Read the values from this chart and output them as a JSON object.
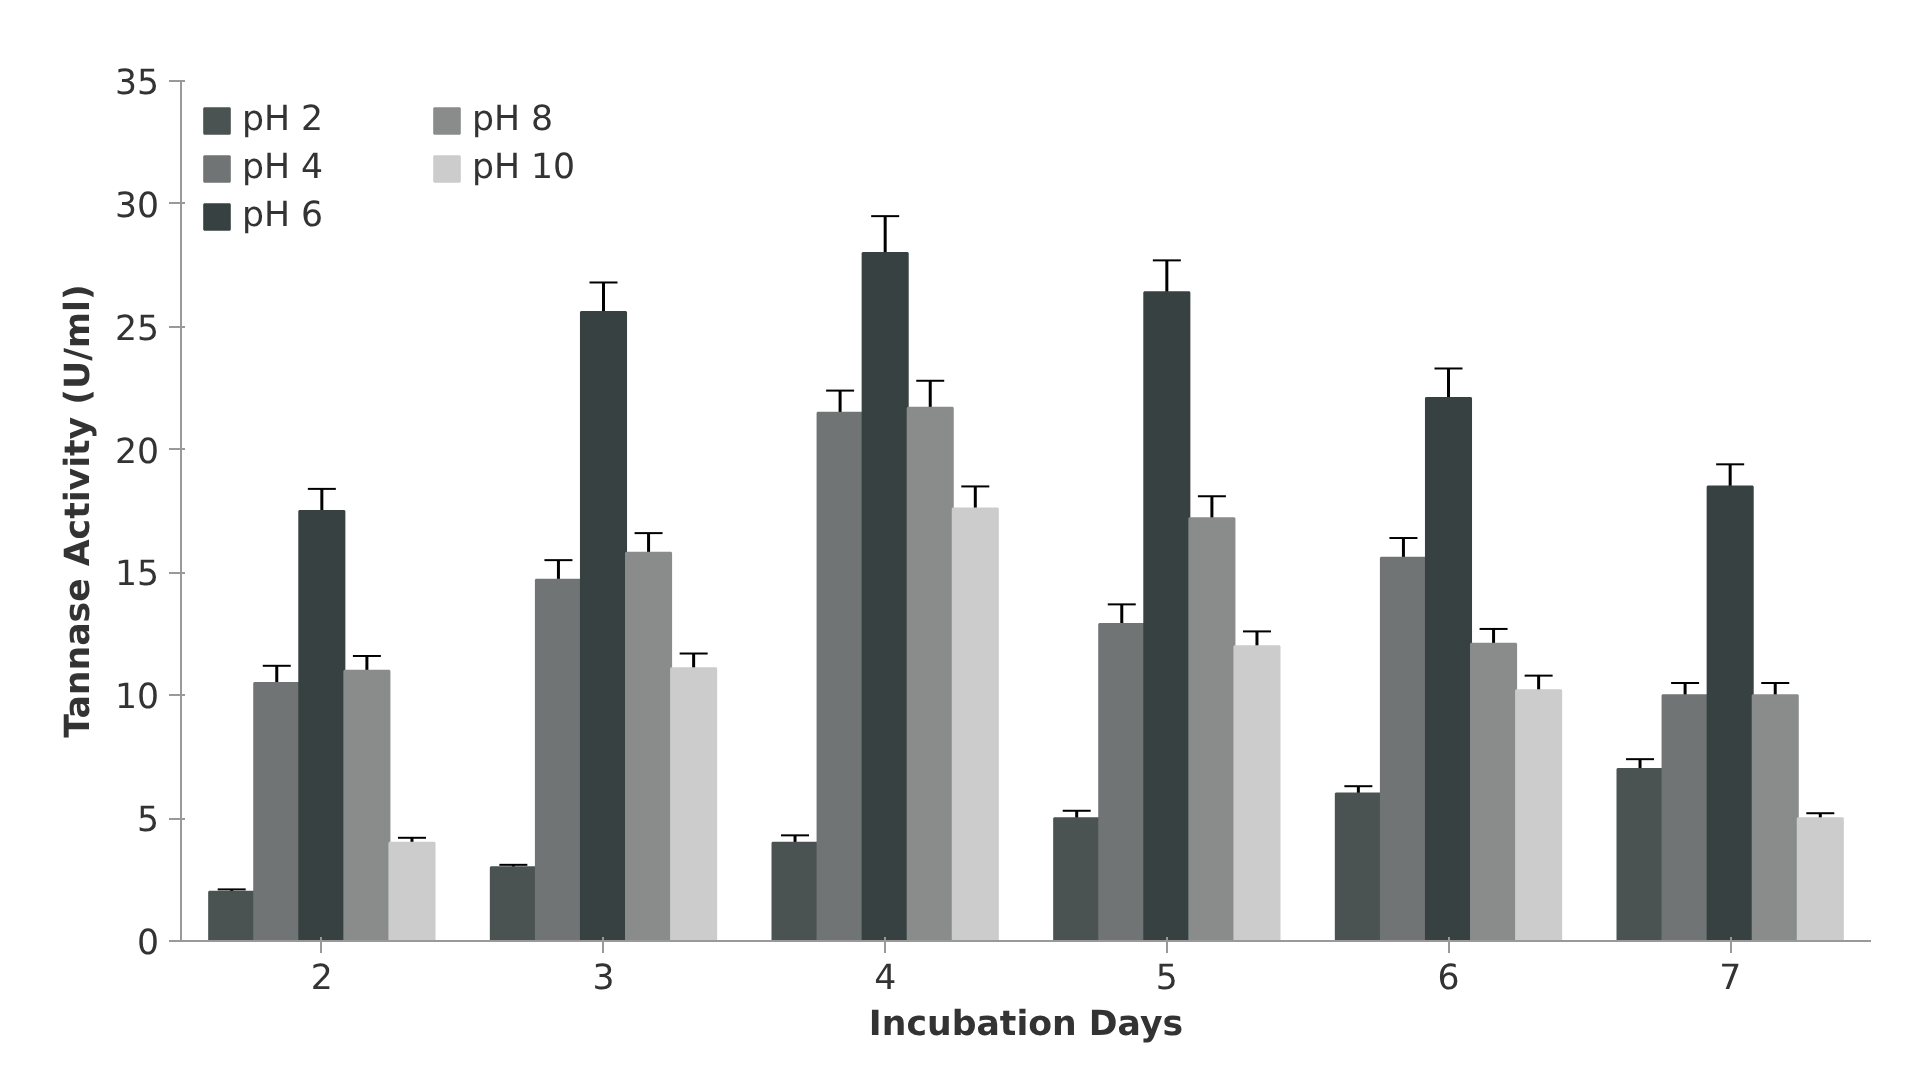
{
  "chart_data": {
    "type": "bar",
    "xlabel": "Incubation Days",
    "ylabel": "Tannase Activity (U/ml)",
    "categories": [
      "2",
      "3",
      "4",
      "5",
      "6",
      "7"
    ],
    "ylim": [
      0,
      35
    ],
    "yticks": [
      0,
      5,
      10,
      15,
      20,
      25,
      30,
      35
    ],
    "grid": false,
    "legend": "top left",
    "series": [
      {
        "name": "pH 2",
        "color": "#4a5352",
        "values": [
          2,
          3,
          4,
          5,
          6,
          7
        ],
        "errors": [
          0.1,
          0.1,
          0.3,
          0.3,
          0.3,
          0.4
        ]
      },
      {
        "name": "pH 4",
        "color": "#707474",
        "values": [
          10.5,
          14.7,
          21.5,
          12.9,
          15.6,
          10
        ],
        "errors": [
          0.7,
          0.8,
          0.9,
          0.8,
          0.8,
          0.5
        ]
      },
      {
        "name": "pH 6",
        "color": "#374141",
        "values": [
          17.5,
          25.6,
          28,
          26.4,
          22.1,
          18.5
        ],
        "errors": [
          0.9,
          1.2,
          1.5,
          1.3,
          1.2,
          0.9
        ]
      },
      {
        "name": "pH 8",
        "color": "#8a8c8c",
        "values": [
          11,
          15.8,
          21.7,
          17.2,
          12.1,
          10
        ],
        "errors": [
          0.6,
          0.8,
          1.1,
          0.9,
          0.6,
          0.5
        ]
      },
      {
        "name": "pH 10",
        "color": "#cccccc",
        "values": [
          4,
          11.1,
          17.6,
          12,
          10.2,
          5
        ],
        "errors": [
          0.2,
          0.6,
          0.9,
          0.6,
          0.6,
          0.2
        ]
      }
    ]
  }
}
